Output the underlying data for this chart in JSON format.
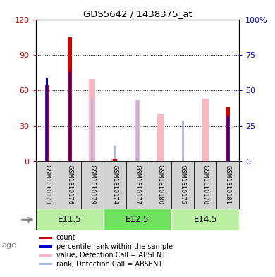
{
  "title": "GDS5642 / 1438375_at",
  "samples": [
    "GSM1310173",
    "GSM1310176",
    "GSM1310179",
    "GSM1310174",
    "GSM1310177",
    "GSM1310180",
    "GSM1310175",
    "GSM1310178",
    "GSM1310181"
  ],
  "count_values": [
    65,
    105,
    0,
    2,
    0,
    0,
    0,
    0,
    46
  ],
  "percentile_values": [
    59,
    63,
    0,
    0,
    0,
    0,
    0,
    0,
    32
  ],
  "absent_value_values": [
    0,
    0,
    58,
    2,
    43,
    33,
    0,
    44,
    0
  ],
  "absent_rank_values": [
    0,
    0,
    44,
    11,
    43,
    0,
    29,
    0,
    0
  ],
  "count_color": "#cc0000",
  "percentile_color": "#0000cc",
  "absent_value_color": "#ffb6c1",
  "absent_rank_color": "#b0b8e8",
  "ylim_left": [
    0,
    120
  ],
  "ylim_right": [
    0,
    100
  ],
  "yticks_left": [
    0,
    30,
    60,
    90,
    120
  ],
  "yticks_right": [
    0,
    25,
    50,
    75,
    100
  ],
  "yticklabels_right": [
    "0",
    "25",
    "50",
    "75",
    "100%"
  ],
  "age_groups": [
    {
      "label": "E11.5",
      "samples": [
        0,
        1,
        2
      ],
      "color": "#b8f0a0"
    },
    {
      "label": "E12.5",
      "samples": [
        3,
        4,
        5
      ],
      "color": "#70e070"
    },
    {
      "label": "E14.5",
      "samples": [
        6,
        7,
        8
      ],
      "color": "#b8f0a0"
    }
  ],
  "age_label": "age",
  "legend_items": [
    {
      "label": "count",
      "color": "#cc0000"
    },
    {
      "label": "percentile rank within the sample",
      "color": "#0000cc"
    },
    {
      "label": "value, Detection Call = ABSENT",
      "color": "#ffb6c1"
    },
    {
      "label": "rank, Detection Call = ABSENT",
      "color": "#b0b8e8"
    }
  ]
}
